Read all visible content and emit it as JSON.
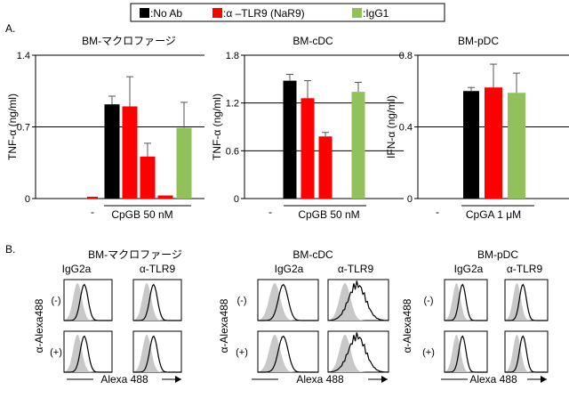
{
  "legend": {
    "items": [
      {
        "label": ":No Ab",
        "color": "#000000"
      },
      {
        "label": ":α –TLR9 (NaR9)",
        "color": "#ff0000"
      },
      {
        "label": ":IgG1",
        "color": "#92c05a"
      }
    ]
  },
  "panel_a_label": "A.",
  "panel_b_label": "B.",
  "colors": {
    "no_ab": "#000000",
    "tlr9": "#ff0000",
    "igg1": "#92c05a",
    "histo_fill": "#c8c8c8"
  },
  "chart_data": [
    {
      "type": "bar",
      "title": "BM-マクロファージ",
      "ylabel": "TNF-α (ng/ml)",
      "ylim": [
        0,
        1.4
      ],
      "yticks": [
        "0",
        "0.7",
        "1.4"
      ],
      "xlabels": [
        "-",
        "CpGB 50 nM"
      ],
      "series": [
        {
          "key": "neg",
          "color": "#ff0000",
          "values": [
            0.0
          ],
          "errors": [
            0.0
          ]
        },
        {
          "key": "no_ab",
          "color": "#000000",
          "values": [
            0.92
          ],
          "errors": [
            0.08
          ]
        },
        {
          "key": "tlr9_a",
          "color": "#ff0000",
          "values": [
            0.9
          ],
          "errors": [
            0.29
          ]
        },
        {
          "key": "tlr9_b",
          "color": "#ff0000",
          "values": [
            0.41
          ],
          "errors": [
            0.13
          ]
        },
        {
          "key": "tlr9_c",
          "color": "#ff0000",
          "values": [
            0.03
          ],
          "errors": [
            0.0
          ]
        },
        {
          "key": "igg1",
          "color": "#92c05a",
          "values": [
            0.69
          ],
          "errors": [
            0.25
          ]
        }
      ]
    },
    {
      "type": "bar",
      "title": "BM-cDC",
      "ylabel": "TNF-α (ng/ml)",
      "ylim": [
        0,
        1.8
      ],
      "yticks": [
        "0",
        "0.6",
        "1.2",
        "1.8"
      ],
      "xlabels": [
        "-",
        "CpGB 50 nM"
      ],
      "series": [
        {
          "key": "no_ab",
          "color": "#000000",
          "values": [
            1.48
          ],
          "errors": [
            0.08
          ]
        },
        {
          "key": "tlr9_a",
          "color": "#ff0000",
          "values": [
            1.26
          ],
          "errors": [
            0.22
          ]
        },
        {
          "key": "tlr9_b",
          "color": "#ff0000",
          "values": [
            0.78
          ],
          "errors": [
            0.05
          ]
        },
        {
          "key": "igg1",
          "color": "#92c05a",
          "values": [
            1.34
          ],
          "errors": [
            0.12
          ]
        }
      ]
    },
    {
      "type": "bar",
      "title": "BM-pDC",
      "ylabel": "IFN-α (ng/ml)",
      "ylim": [
        0,
        0.8
      ],
      "yticks": [
        "0",
        "0.4",
        "0.8"
      ],
      "xlabels": [
        "-",
        "CpGA 1 μM"
      ],
      "series": [
        {
          "key": "no_ab",
          "color": "#000000",
          "values": [
            0.6
          ],
          "errors": [
            0.02
          ]
        },
        {
          "key": "tlr9_a",
          "color": "#ff0000",
          "values": [
            0.62
          ],
          "errors": [
            0.13
          ]
        },
        {
          "key": "igg1",
          "color": "#92c05a",
          "values": [
            0.59
          ],
          "errors": [
            0.11
          ]
        }
      ]
    }
  ],
  "histograms": [
    {
      "title": "BM-マクロファージ",
      "col1": "IgG2a",
      "col2": "α-TLR9",
      "ylabel": "α-Alexa488",
      "rows": [
        "(-)",
        "(+)"
      ],
      "xlabel": "Alexa 488"
    },
    {
      "title": "BM-cDC",
      "col1": "IgG2a",
      "col2": "α-TLR9",
      "ylabel": "α-Alexa488",
      "rows": [
        "(-)",
        "(+)"
      ],
      "xlabel": "Alexa 488"
    },
    {
      "title": "BM-pDC",
      "col1": "IgG2a",
      "col2": "α-TLR9",
      "ylabel": "α-Alexa488",
      "rows": [
        "(-)",
        "(+)"
      ],
      "xlabel": "Alexa 488"
    }
  ]
}
